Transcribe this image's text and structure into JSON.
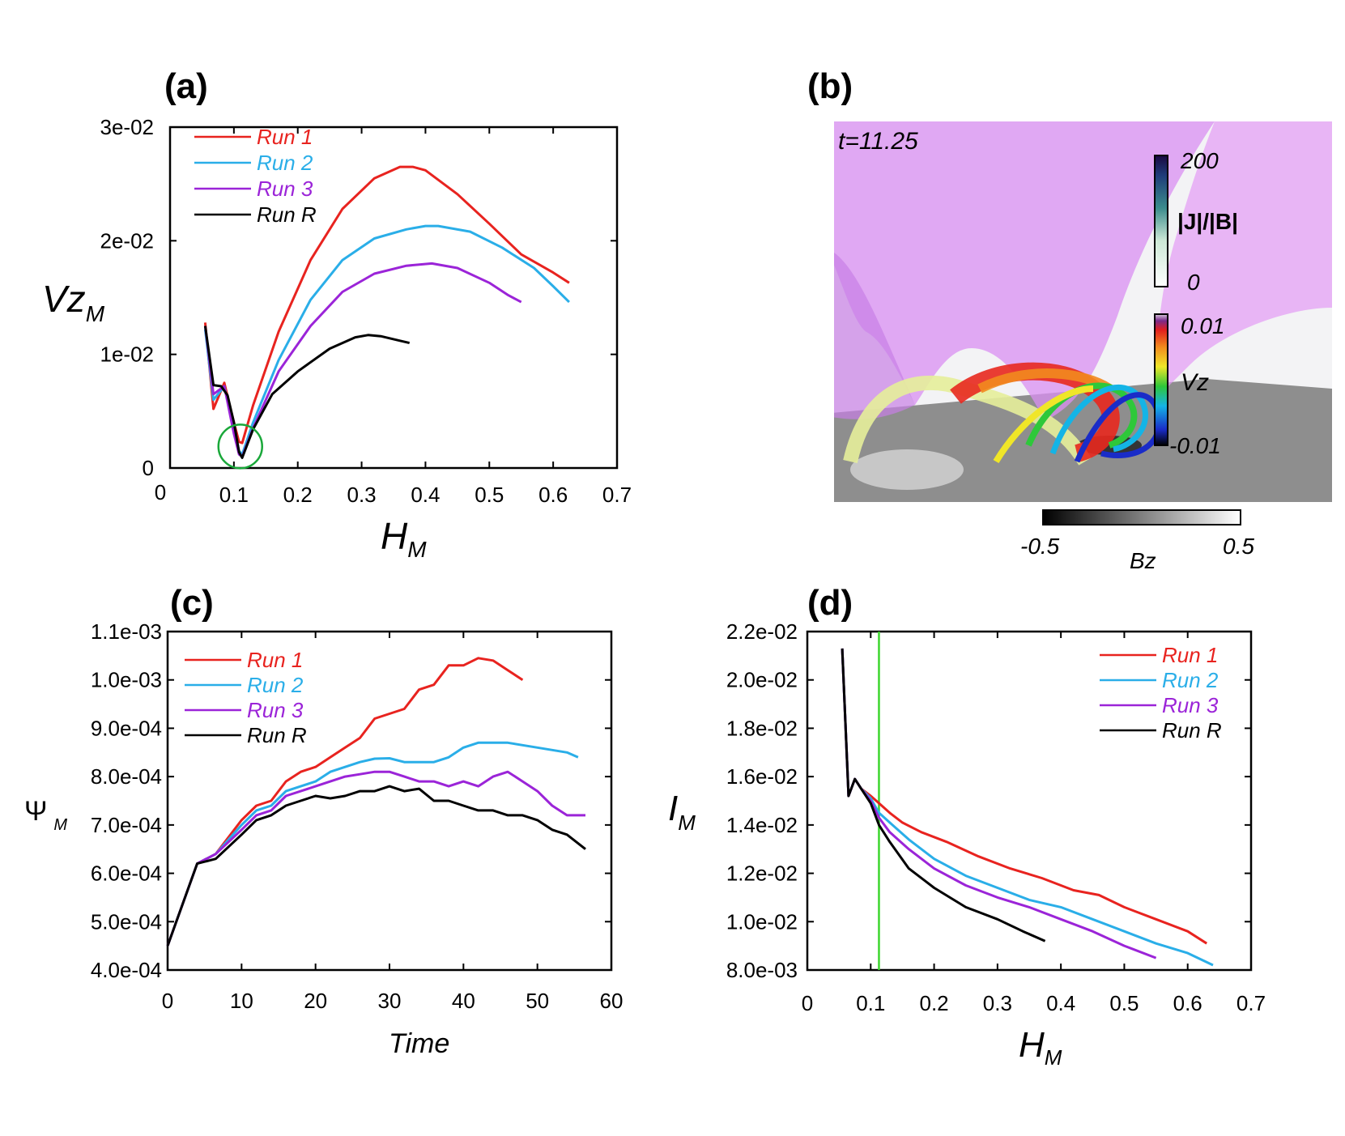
{
  "panel_labels": {
    "a": "(a)",
    "b": "(b)",
    "c": "(c)",
    "d": "(d)"
  },
  "colors": {
    "run1": "#e8231f",
    "run2": "#2aaee8",
    "run3": "#9b24d8",
    "runR": "#000000",
    "marker": "#1aa83a",
    "vline": "#3dd62e",
    "flux_rope_surface": "#d98ff2"
  },
  "chart_data": [
    {
      "id": "a",
      "type": "line",
      "xlabel_main": "H",
      "xlabel_sub": "M",
      "ylabel_main": "Vz",
      "ylabel_sub": "M",
      "xlim": [
        0,
        0.7
      ],
      "ylim": [
        0,
        0.03
      ],
      "xticks": [
        0.1,
        0.2,
        0.3,
        0.4,
        0.5,
        0.6,
        0.7
      ],
      "xtick_labels": [
        "0.1",
        "0.2",
        "0.3",
        "0.4",
        "0.5",
        "0.6",
        "0.7"
      ],
      "x_origin_label": "0",
      "yticks": [
        0,
        0.01,
        0.02,
        0.03
      ],
      "ytick_labels": [
        "0",
        "1e-02",
        "2e-02",
        "3e-02"
      ],
      "legend": "top-left",
      "annotation": {
        "type": "circle",
        "x": 0.11,
        "y": 0.0019
      },
      "series": [
        {
          "name": "Run 1",
          "key": "run1",
          "x": [
            0.055,
            0.068,
            0.085,
            0.1,
            0.108,
            0.113,
            0.13,
            0.17,
            0.22,
            0.27,
            0.32,
            0.36,
            0.38,
            0.4,
            0.45,
            0.5,
            0.55,
            0.6,
            0.625
          ],
          "y": [
            0.0128,
            0.0052,
            0.0075,
            0.004,
            0.0023,
            0.0022,
            0.0055,
            0.012,
            0.0183,
            0.0228,
            0.0255,
            0.0265,
            0.0265,
            0.0262,
            0.0241,
            0.0215,
            0.0188,
            0.0172,
            0.0163
          ]
        },
        {
          "name": "Run 2",
          "key": "run2",
          "x": [
            0.055,
            0.068,
            0.085,
            0.1,
            0.108,
            0.113,
            0.13,
            0.17,
            0.22,
            0.27,
            0.32,
            0.37,
            0.4,
            0.42,
            0.47,
            0.52,
            0.57,
            0.6,
            0.625
          ],
          "y": [
            0.0122,
            0.006,
            0.0072,
            0.0035,
            0.0015,
            0.0012,
            0.004,
            0.0095,
            0.0148,
            0.0183,
            0.0202,
            0.021,
            0.0213,
            0.0213,
            0.0208,
            0.0194,
            0.0176,
            0.016,
            0.0146
          ]
        },
        {
          "name": "Run 3",
          "key": "run3",
          "x": [
            0.055,
            0.068,
            0.085,
            0.1,
            0.108,
            0.113,
            0.13,
            0.17,
            0.22,
            0.27,
            0.32,
            0.37,
            0.41,
            0.45,
            0.5,
            0.53,
            0.55
          ],
          "y": [
            0.0125,
            0.0065,
            0.0072,
            0.003,
            0.0012,
            0.001,
            0.0035,
            0.0085,
            0.0125,
            0.0155,
            0.0171,
            0.0178,
            0.018,
            0.0176,
            0.0163,
            0.0152,
            0.0146
          ]
        },
        {
          "name": "Run R",
          "key": "runR",
          "x": [
            0.055,
            0.068,
            0.08,
            0.09,
            0.1,
            0.108,
            0.113,
            0.13,
            0.16,
            0.2,
            0.25,
            0.29,
            0.31,
            0.33,
            0.36,
            0.375
          ],
          "y": [
            0.0125,
            0.0073,
            0.0072,
            0.0064,
            0.004,
            0.0014,
            0.0009,
            0.0034,
            0.0065,
            0.0085,
            0.0105,
            0.0115,
            0.0117,
            0.0116,
            0.0112,
            0.011
          ]
        }
      ]
    },
    {
      "id": "c",
      "type": "line",
      "xlabel_main": "Time",
      "ylabel_main": "Ψ",
      "ylabel_sub": "M",
      "xlim": [
        0,
        60
      ],
      "ylim": [
        0.0004,
        0.0011
      ],
      "xticks": [
        0,
        10,
        20,
        30,
        40,
        50,
        60
      ],
      "xtick_labels": [
        "0",
        "10",
        "20",
        "30",
        "40",
        "50",
        "60"
      ],
      "yticks": [
        0.0004,
        0.0005,
        0.0006,
        0.0007,
        0.0008,
        0.0009,
        0.001,
        0.0011
      ],
      "ytick_labels": [
        "4.0e-04",
        "5.0e-04",
        "6.0e-04",
        "7.0e-04",
        "8.0e-04",
        "9.0e-04",
        "1.0e-03",
        "1.1e-03"
      ],
      "legend": "top-left",
      "series": [
        {
          "name": "Run 1",
          "key": "run1",
          "x": [
            0,
            4,
            6.5,
            10,
            12,
            14,
            16,
            18,
            20,
            22,
            24,
            26,
            28,
            30,
            32,
            34,
            36,
            38,
            40,
            42,
            44,
            46,
            48
          ],
          "y": [
            0.00045,
            0.00062,
            0.00064,
            0.00071,
            0.00074,
            0.00075,
            0.00079,
            0.00081,
            0.00082,
            0.00084,
            0.00086,
            0.00088,
            0.00092,
            0.00093,
            0.00094,
            0.00098,
            0.00099,
            0.00103,
            0.00103,
            0.001045,
            0.00104,
            0.00102,
            0.001
          ]
        },
        {
          "name": "Run 2",
          "key": "run2",
          "x": [
            0,
            4,
            6.5,
            10,
            12,
            14,
            16,
            18,
            20,
            22,
            24,
            26,
            28,
            30,
            32,
            34,
            36,
            38,
            40,
            42,
            46,
            50,
            54,
            55.5
          ],
          "y": [
            0.00045,
            0.00062,
            0.00064,
            0.0007,
            0.00073,
            0.00074,
            0.00077,
            0.00078,
            0.00079,
            0.00081,
            0.00082,
            0.00083,
            0.000837,
            0.000838,
            0.00083,
            0.00083,
            0.00083,
            0.00084,
            0.00086,
            0.00087,
            0.00087,
            0.00086,
            0.00085,
            0.00084
          ]
        },
        {
          "name": "Run 3",
          "key": "run3",
          "x": [
            0,
            4,
            6.5,
            10,
            12,
            14,
            16,
            18,
            20,
            22,
            24,
            26,
            28,
            30,
            32,
            34,
            36,
            38,
            40,
            42,
            44,
            46,
            48,
            50,
            52,
            54,
            56.5
          ],
          "y": [
            0.00045,
            0.00062,
            0.00064,
            0.00069,
            0.00072,
            0.00073,
            0.00076,
            0.00077,
            0.00078,
            0.00079,
            0.0008,
            0.000805,
            0.00081,
            0.00081,
            0.0008,
            0.00079,
            0.00079,
            0.00078,
            0.00079,
            0.00078,
            0.0008,
            0.00081,
            0.00079,
            0.00077,
            0.00074,
            0.00072,
            0.00072
          ]
        },
        {
          "name": "Run R",
          "key": "runR",
          "x": [
            0,
            4,
            6.5,
            10,
            12,
            14,
            16,
            18,
            20,
            22,
            24,
            26,
            28,
            30,
            32,
            34,
            36,
            38,
            40,
            42,
            44,
            46,
            48,
            50,
            52,
            54,
            56.5
          ],
          "y": [
            0.00045,
            0.00062,
            0.00063,
            0.00068,
            0.00071,
            0.00072,
            0.00074,
            0.00075,
            0.00076,
            0.000755,
            0.00076,
            0.00077,
            0.00077,
            0.00078,
            0.00077,
            0.000775,
            0.00075,
            0.00075,
            0.00074,
            0.00073,
            0.00073,
            0.00072,
            0.00072,
            0.00071,
            0.00069,
            0.00068,
            0.00065
          ]
        }
      ]
    },
    {
      "id": "d",
      "type": "line",
      "xlabel_main": "H",
      "xlabel_sub": "M",
      "ylabel_main": "I",
      "ylabel_sub": "M",
      "xlim": [
        0,
        0.7
      ],
      "ylim": [
        0.008,
        0.022
      ],
      "xticks": [
        0,
        0.1,
        0.2,
        0.3,
        0.4,
        0.5,
        0.6,
        0.7
      ],
      "xtick_labels": [
        "0",
        "0.1",
        "0.2",
        "0.3",
        "0.4",
        "0.5",
        "0.6",
        "0.7"
      ],
      "yticks": [
        0.008,
        0.01,
        0.012,
        0.014,
        0.016,
        0.018,
        0.02,
        0.022
      ],
      "ytick_labels": [
        "8.0e-03",
        "1.0e-02",
        "1.2e-02",
        "1.4e-02",
        "1.6e-02",
        "1.8e-02",
        "2.0e-02",
        "2.2e-02"
      ],
      "legend": "top-right",
      "vline_x": 0.113,
      "series": [
        {
          "name": "Run 1",
          "key": "run1",
          "x": [
            0.055,
            0.065,
            0.075,
            0.085,
            0.1,
            0.113,
            0.13,
            0.15,
            0.18,
            0.22,
            0.27,
            0.32,
            0.37,
            0.42,
            0.46,
            0.5,
            0.55,
            0.6,
            0.63
          ],
          "y": [
            0.0213,
            0.0152,
            0.0159,
            0.0155,
            0.0152,
            0.0149,
            0.0145,
            0.0141,
            0.0137,
            0.0133,
            0.0127,
            0.0122,
            0.0118,
            0.0113,
            0.0111,
            0.0106,
            0.0101,
            0.0096,
            0.0091
          ]
        },
        {
          "name": "Run 2",
          "key": "run2",
          "x": [
            0.055,
            0.065,
            0.075,
            0.085,
            0.1,
            0.113,
            0.13,
            0.16,
            0.2,
            0.25,
            0.3,
            0.35,
            0.4,
            0.45,
            0.5,
            0.55,
            0.6,
            0.64
          ],
          "y": [
            0.0213,
            0.0152,
            0.0159,
            0.0155,
            0.0151,
            0.0145,
            0.0141,
            0.0134,
            0.0126,
            0.0119,
            0.0114,
            0.0109,
            0.0106,
            0.0101,
            0.0096,
            0.0091,
            0.0087,
            0.0082
          ]
        },
        {
          "name": "Run 3",
          "key": "run3",
          "x": [
            0.055,
            0.065,
            0.075,
            0.085,
            0.1,
            0.113,
            0.13,
            0.16,
            0.2,
            0.25,
            0.3,
            0.35,
            0.4,
            0.45,
            0.5,
            0.55
          ],
          "y": [
            0.0213,
            0.0152,
            0.0159,
            0.0155,
            0.015,
            0.0143,
            0.0137,
            0.013,
            0.0122,
            0.0115,
            0.011,
            0.0106,
            0.0101,
            0.0096,
            0.009,
            0.0085
          ]
        },
        {
          "name": "Run R",
          "key": "runR",
          "x": [
            0.055,
            0.065,
            0.075,
            0.085,
            0.1,
            0.113,
            0.13,
            0.16,
            0.2,
            0.25,
            0.3,
            0.34,
            0.375
          ],
          "y": [
            0.0213,
            0.0152,
            0.0159,
            0.0155,
            0.0149,
            0.014,
            0.0133,
            0.0122,
            0.0114,
            0.0106,
            0.0101,
            0.0096,
            0.0092
          ]
        }
      ]
    }
  ],
  "panel_b": {
    "time_label": "t=11.25",
    "colorbar_j": {
      "label": "|J|/|B|",
      "max": "200",
      "min": "0"
    },
    "colorbar_vz": {
      "label": "Vz",
      "max": "0.01",
      "min": "-0.01"
    },
    "colorbar_bz": {
      "label": "Bz",
      "min": "-0.5",
      "max": "0.5"
    }
  }
}
